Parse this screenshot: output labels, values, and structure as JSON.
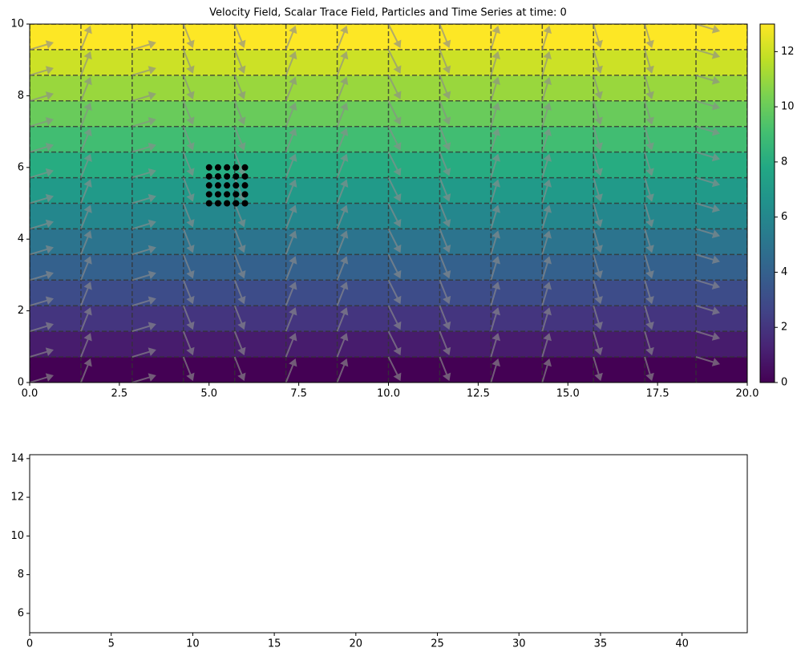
{
  "chart_data": [
    {
      "type": "contour",
      "title": "Velocity Field, Scalar Trace Field, Particles and Time Series at time: 0",
      "xlim": [
        0,
        20
      ],
      "ylim": [
        0,
        10
      ],
      "xticks": [
        {
          "value": 0,
          "label": "0.0"
        },
        2.5,
        {
          "value": 5,
          "label": "5.0"
        },
        7.5,
        {
          "value": 10,
          "label": "10.0"
        },
        12.5,
        {
          "value": 15,
          "label": "15.0"
        },
        17.5,
        {
          "value": 20,
          "label": "20.0"
        }
      ],
      "yticks": [
        0,
        2,
        4,
        6,
        8,
        10
      ],
      "colormap": "viridis",
      "mesh": {
        "x": [
          0,
          1.429,
          2.857,
          4.286,
          5.714,
          7.143,
          8.571,
          10,
          11.429,
          12.857,
          14.286,
          15.714,
          17.143,
          18.571,
          20
        ],
        "y": [
          0,
          0.714,
          1.429,
          2.143,
          2.857,
          3.571,
          4.286,
          5,
          5.714,
          6.429,
          7.143,
          7.857,
          8.571,
          9.286,
          10
        ]
      },
      "field": {
        "values": [
          0,
          0.929,
          1.857,
          2.786,
          3.714,
          4.643,
          5.571,
          6.5,
          7.429,
          8.357,
          9.286,
          10.214,
          11.143,
          12.071,
          13
        ]
      },
      "quiver": {
        "color": "#8c8c8c",
        "u": [
          1,
          0.4,
          1,
          0.4,
          0.4,
          0.4,
          0.4,
          0.5,
          0.4,
          0.3,
          0.3,
          0.3,
          0.3,
          1,
          1
        ],
        "v": [
          0.3,
          1,
          0.3,
          -1,
          -1,
          1,
          1,
          -1,
          -1,
          1,
          1,
          -1,
          -1,
          -0.3,
          -0.3
        ]
      },
      "particles": {
        "color": "#000000",
        "x": [
          5,
          5.25,
          5.5,
          5.75,
          6,
          5,
          5.25,
          5.5,
          5.75,
          6,
          5,
          5.25,
          5.5,
          5.75,
          6,
          5,
          5.25,
          5.5,
          5.75,
          6,
          5,
          5.25,
          5.5,
          5.75,
          6
        ],
        "y": [
          5,
          5,
          5,
          5,
          5,
          5.25,
          5.25,
          5.25,
          5.25,
          5.25,
          5.5,
          5.5,
          5.5,
          5.5,
          5.5,
          5.75,
          5.75,
          5.75,
          5.75,
          5.75,
          6,
          6,
          6,
          6,
          6
        ]
      },
      "colorbar": {
        "lim": [
          0,
          13
        ],
        "ticks": [
          0,
          2,
          4,
          6,
          8,
          10,
          12
        ]
      }
    },
    {
      "type": "line",
      "xlim": [
        0,
        44
      ],
      "ylim": [
        5,
        14.2
      ],
      "xticks": [
        0,
        5,
        10,
        15,
        20,
        25,
        30,
        35,
        40
      ],
      "yticks": [
        6,
        8,
        10,
        12,
        14
      ],
      "series": []
    }
  ]
}
